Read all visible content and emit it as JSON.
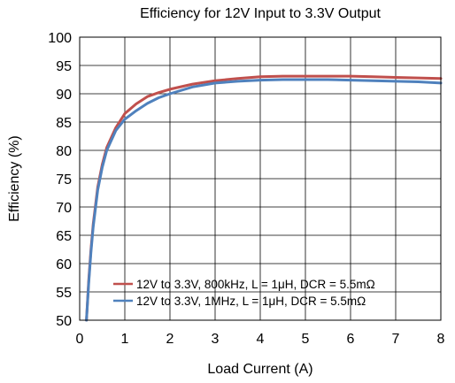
{
  "chart_data": {
    "type": "line",
    "title": "Efficiency for 12V Input to 3.3V Output",
    "xlabel": "Load Current (A)",
    "ylabel": "Efficiency (%)",
    "xlim": [
      0,
      8
    ],
    "ylim": [
      50,
      100
    ],
    "xticks": [
      0,
      1,
      2,
      3,
      4,
      5,
      6,
      7,
      8
    ],
    "yticks": [
      50,
      55,
      60,
      65,
      70,
      75,
      80,
      85,
      90,
      95,
      100
    ],
    "grid": true,
    "legend_position": "bottom-right",
    "series": [
      {
        "name": "12V to 3.3V, 800kHz, L = 1μH, DCR = 5.5mΩ",
        "color": "#c0504d",
        "x": [
          0.15,
          0.2,
          0.25,
          0.3,
          0.4,
          0.5,
          0.6,
          0.8,
          1.0,
          1.25,
          1.5,
          1.75,
          2.0,
          2.5,
          3.0,
          3.5,
          4.0,
          4.5,
          5.0,
          5.5,
          6.0,
          6.5,
          7.0,
          7.5,
          8.0
        ],
        "y": [
          50,
          57,
          62.5,
          67,
          73.5,
          77.5,
          80.5,
          84,
          86.5,
          88.2,
          89.5,
          90.2,
          90.8,
          91.7,
          92.3,
          92.7,
          93.0,
          93.1,
          93.1,
          93.1,
          93.1,
          93.0,
          92.9,
          92.8,
          92.7
        ]
      },
      {
        "name": "12V to 3.3V, 1MHz, L = 1μH, DCR = 5.5mΩ",
        "color": "#4f81bd",
        "x": [
          0.15,
          0.2,
          0.25,
          0.3,
          0.4,
          0.5,
          0.6,
          0.8,
          1.0,
          1.25,
          1.5,
          1.75,
          2.0,
          2.5,
          3.0,
          3.5,
          4.0,
          4.5,
          5.0,
          5.5,
          6.0,
          6.5,
          7.0,
          7.5,
          8.0
        ],
        "y": [
          50,
          56.5,
          62,
          66.5,
          73,
          77,
          80,
          83.5,
          85.5,
          87,
          88.3,
          89.3,
          90.0,
          91.2,
          91.9,
          92.2,
          92.4,
          92.5,
          92.5,
          92.5,
          92.4,
          92.3,
          92.2,
          92.1,
          91.9
        ]
      }
    ]
  }
}
